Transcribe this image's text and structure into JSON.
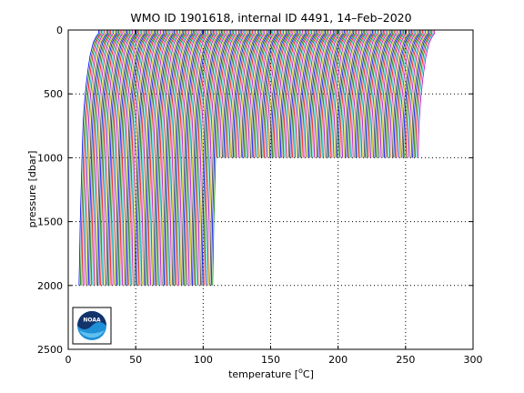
{
  "chart_data": {
    "type": "line",
    "title": "WMO ID 1901618, internal ID 4491, 14–Feb–2020",
    "xlabel": {
      "prefix": "temperature [",
      "sup": "o",
      "suffix": "C]"
    },
    "ylabel": "pressure [dbar]",
    "xlim": [
      0,
      300
    ],
    "ylim": [
      0,
      2500
    ],
    "y_reversed": true,
    "xticks": [
      "0",
      "50",
      "100",
      "150",
      "200",
      "250",
      "300"
    ],
    "yticks": [
      "0",
      "500",
      "1000",
      "1500",
      "2000",
      "2500"
    ],
    "grid": true,
    "grid_style": "dotted",
    "legend": "none",
    "description": "Waterfall of temperature profiles, each successive profile offset to the right",
    "profile_offset_step": 1,
    "deep_profiles": {
      "count": 100,
      "x_start": 8,
      "bottom_pressure": 2000
    },
    "shallow_profiles": {
      "count": 150,
      "x_start": 108,
      "bottom_pressure": 1000
    },
    "profile_shape": {
      "pressure": [
        0,
        20,
        30,
        50,
        100,
        200,
        300,
        400,
        500,
        600,
        700,
        800,
        900,
        1000,
        1200,
        1500,
        1800,
        2000
      ],
      "temperature": [
        14.5,
        14.5,
        14.3,
        12.8,
        10.5,
        8.2,
        6.8,
        5.6,
        4.6,
        3.8,
        3.2,
        2.8,
        2.5,
        2.2,
        1.7,
        0.9,
        0.4,
        0.0
      ]
    },
    "series_colors": [
      "#0000ff",
      "#008000",
      "#ff0000",
      "#00bfbf",
      "#bf00bf",
      "#bfbf00",
      "#404040"
    ]
  },
  "logo": {
    "name": "noaa-logo",
    "text": "NOAA"
  }
}
